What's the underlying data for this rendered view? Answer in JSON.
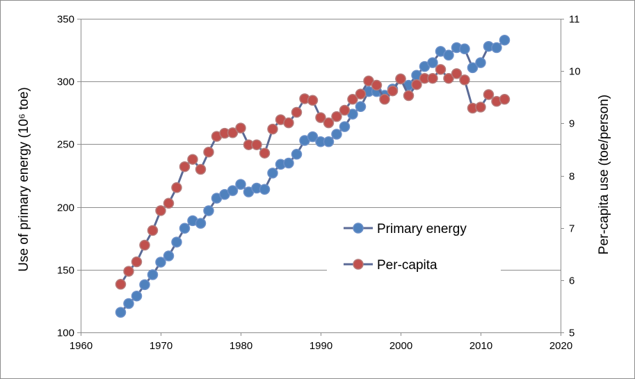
{
  "chart_data": {
    "type": "line",
    "grid": true,
    "legend_position": "center-right",
    "x_axis": {
      "min": 1960,
      "max": 2020,
      "ticks": [
        1960,
        1970,
        1980,
        1990,
        2000,
        2010,
        2020
      ],
      "tick_labels": [
        "1960",
        "1970",
        "1980",
        "1990",
        "2000",
        "2010",
        "2020"
      ]
    },
    "y_left": {
      "label": "Use of primary energy (10⁶ toe)",
      "min": 100,
      "max": 350,
      "ticks": [
        100,
        150,
        200,
        250,
        300,
        350
      ],
      "tick_labels": [
        "100",
        "150",
        "200",
        "250",
        "300",
        "350"
      ]
    },
    "y_right": {
      "label": "Per-capita use (toe/person)",
      "min": 5,
      "max": 11,
      "ticks": [
        5,
        6,
        7,
        8,
        9,
        10,
        11
      ],
      "tick_labels": [
        "5",
        "6",
        "7",
        "8",
        "9",
        "10",
        "11"
      ]
    },
    "series": [
      {
        "name": "Primary energy",
        "axis": "left",
        "line_color": "#5a6a96",
        "marker_fill": "#4f81bd",
        "marker_stroke": "#6a8fc8",
        "points": [
          [
            1965,
            116
          ],
          [
            1966,
            123
          ],
          [
            1967,
            129
          ],
          [
            1968,
            138
          ],
          [
            1969,
            146
          ],
          [
            1970,
            156
          ],
          [
            1971,
            161
          ],
          [
            1972,
            172
          ],
          [
            1973,
            183
          ],
          [
            1974,
            189
          ],
          [
            1975,
            187
          ],
          [
            1976,
            197
          ],
          [
            1977,
            207
          ],
          [
            1978,
            210
          ],
          [
            1979,
            213
          ],
          [
            1980,
            218
          ],
          [
            1981,
            212
          ],
          [
            1982,
            215
          ],
          [
            1983,
            214
          ],
          [
            1984,
            227
          ],
          [
            1985,
            234
          ],
          [
            1986,
            235
          ],
          [
            1987,
            242
          ],
          [
            1988,
            253
          ],
          [
            1989,
            256
          ],
          [
            1990,
            252
          ],
          [
            1991,
            252
          ],
          [
            1992,
            258
          ],
          [
            1993,
            264
          ],
          [
            1994,
            274
          ],
          [
            1995,
            280
          ],
          [
            1996,
            292
          ],
          [
            1997,
            292
          ],
          [
            1998,
            289
          ],
          [
            1999,
            294
          ],
          [
            2000,
            302
          ],
          [
            2001,
            297
          ],
          [
            2002,
            305
          ],
          [
            2003,
            312
          ],
          [
            2004,
            315
          ],
          [
            2005,
            324
          ],
          [
            2006,
            321
          ],
          [
            2007,
            327
          ],
          [
            2008,
            326
          ],
          [
            2009,
            311
          ],
          [
            2010,
            315
          ],
          [
            2011,
            328
          ],
          [
            2012,
            327
          ],
          [
            2013,
            333
          ]
        ]
      },
      {
        "name": "Per-capita",
        "axis": "right",
        "line_color": "#5a6a96",
        "marker_fill": "#c0504d",
        "marker_stroke": "#b57b7a",
        "points": [
          [
            1965,
            5.92
          ],
          [
            1966,
            6.17
          ],
          [
            1967,
            6.35
          ],
          [
            1968,
            6.67
          ],
          [
            1969,
            6.95
          ],
          [
            1970,
            7.33
          ],
          [
            1971,
            7.47
          ],
          [
            1972,
            7.77
          ],
          [
            1973,
            8.17
          ],
          [
            1974,
            8.31
          ],
          [
            1975,
            8.12
          ],
          [
            1976,
            8.45
          ],
          [
            1977,
            8.75
          ],
          [
            1978,
            8.81
          ],
          [
            1979,
            8.82
          ],
          [
            1980,
            8.91
          ],
          [
            1981,
            8.59
          ],
          [
            1982,
            8.59
          ],
          [
            1983,
            8.43
          ],
          [
            1984,
            8.89
          ],
          [
            1985,
            9.07
          ],
          [
            1986,
            9.01
          ],
          [
            1987,
            9.21
          ],
          [
            1988,
            9.47
          ],
          [
            1989,
            9.44
          ],
          [
            1990,
            9.11
          ],
          [
            1991,
            9.01
          ],
          [
            1992,
            9.13
          ],
          [
            1993,
            9.25
          ],
          [
            1994,
            9.46
          ],
          [
            1995,
            9.56
          ],
          [
            1996,
            9.81
          ],
          [
            1997,
            9.73
          ],
          [
            1998,
            9.46
          ],
          [
            1999,
            9.62
          ],
          [
            2000,
            9.85
          ],
          [
            2001,
            9.53
          ],
          [
            2002,
            9.74
          ],
          [
            2003,
            9.86
          ],
          [
            2004,
            9.86
          ],
          [
            2005,
            10.03
          ],
          [
            2006,
            9.86
          ],
          [
            2007,
            9.95
          ],
          [
            2008,
            9.83
          ],
          [
            2009,
            9.29
          ],
          [
            2010,
            9.31
          ],
          [
            2011,
            9.55
          ],
          [
            2012,
            9.42
          ],
          [
            2013,
            9.46
          ]
        ]
      }
    ]
  }
}
